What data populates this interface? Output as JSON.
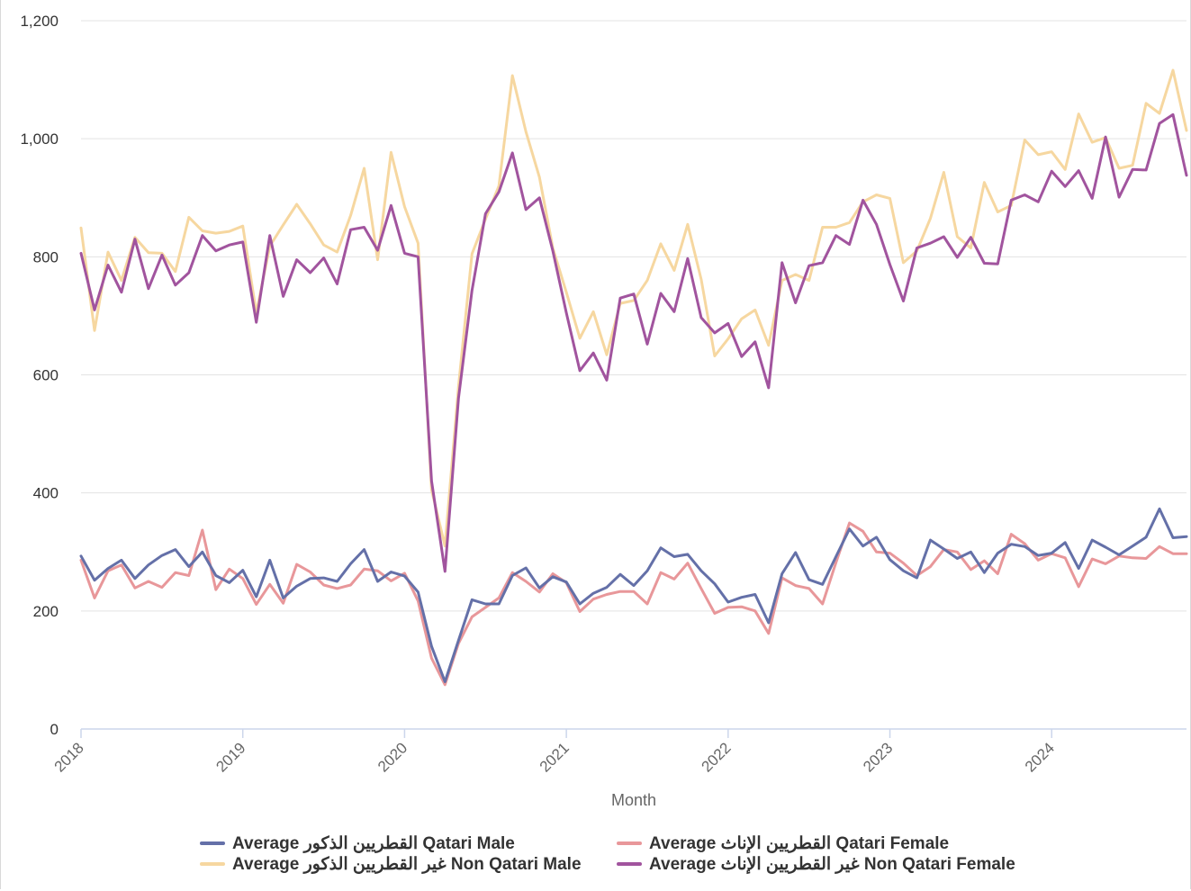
{
  "colors": {
    "qatari_male": "#6470a8",
    "qatari_female": "#e8979a",
    "non_qatari_male": "#f6d7a0",
    "non_qatari_female": "#a1549e",
    "grid": "#e3e3e3",
    "axis": "#ccd6eb",
    "text": "#333333",
    "axis_title": "#666666"
  },
  "chart_data": {
    "type": "line",
    "xlabel": "Month",
    "ylabel": "",
    "xlim": [
      "2018-01",
      "2024-11"
    ],
    "ylim": [
      0,
      1200
    ],
    "yticks": [
      0,
      200,
      400,
      600,
      800,
      1000,
      1200
    ],
    "ytick_labels": [
      "0",
      "200",
      "400",
      "600",
      "800",
      "1,000",
      "1,200"
    ],
    "xticks": [
      "2018",
      "2019",
      "2020",
      "2021",
      "2022",
      "2023",
      "2024"
    ],
    "grid": true,
    "legend_position": "bottom",
    "series": [
      {
        "name": "Average القطريين الذكور Qatari Male",
        "color_key": "qatari_male",
        "values": [
          293,
          252,
          272,
          286,
          255,
          278,
          294,
          304,
          275,
          300,
          260,
          248,
          269,
          224,
          286,
          222,
          242,
          255,
          256,
          250,
          280,
          304,
          250,
          266,
          259,
          232,
          140,
          80,
          150,
          219,
          212,
          212,
          260,
          273,
          239,
          258,
          249,
          212,
          230,
          240,
          262,
          243,
          268,
          307,
          292,
          296,
          268,
          246,
          215,
          223,
          228,
          180,
          263,
          299,
          253,
          245,
          292,
          339,
          310,
          325,
          287,
          268,
          256,
          320,
          305,
          289,
          300,
          265,
          298,
          313,
          309,
          294,
          298,
          316,
          272,
          320,
          308,
          295,
          310,
          325,
          373,
          324,
          326
        ],
        "layer": 4
      },
      {
        "name": "Average القطريين الإناث Qatari Female",
        "color_key": "qatari_female",
        "values": [
          286,
          222,
          268,
          278,
          239,
          250,
          240,
          265,
          260,
          337,
          236,
          271,
          255,
          211,
          245,
          213,
          279,
          266,
          244,
          238,
          244,
          271,
          268,
          251,
          264,
          217,
          120,
          75,
          145,
          190,
          206,
          222,
          265,
          250,
          232,
          263,
          248,
          199,
          220,
          228,
          233,
          233,
          212,
          265,
          254,
          281,
          238,
          196,
          206,
          207,
          200,
          162,
          256,
          243,
          238,
          212,
          282,
          349,
          335,
          300,
          298,
          281,
          260,
          275,
          304,
          300,
          270,
          285,
          263,
          330,
          314,
          286,
          297,
          290,
          241,
          288,
          280,
          293,
          290,
          289,
          309,
          297,
          297
        ],
        "layer": 3
      },
      {
        "name": "Average غير القطريين الذكور Non Qatari Male",
        "color_key": "non_qatari_male",
        "values": [
          849,
          675,
          808,
          760,
          833,
          807,
          806,
          775,
          867,
          844,
          840,
          843,
          852,
          705,
          818,
          854,
          889,
          856,
          820,
          808,
          870,
          950,
          795,
          977,
          885,
          823,
          405,
          310,
          580,
          805,
          864,
          920,
          1107,
          1012,
          935,
          815,
          740,
          662,
          707,
          634,
          721,
          726,
          760,
          822,
          777,
          855,
          762,
          632,
          661,
          695,
          710,
          650,
          760,
          770,
          760,
          850,
          850,
          858,
          893,
          905,
          899,
          790,
          810,
          865,
          943,
          834,
          815,
          926,
          876,
          887,
          998,
          973,
          978,
          948,
          1042,
          994,
          1002,
          950,
          955,
          1060,
          1043,
          1116,
          1014
        ],
        "layer": 1
      },
      {
        "name": "Average غير القطريين الإناث Non Qatari Female",
        "color_key": "non_qatari_female",
        "values": [
          806,
          710,
          786,
          740,
          830,
          746,
          803,
          752,
          773,
          836,
          810,
          820,
          825,
          689,
          836,
          733,
          795,
          773,
          798,
          754,
          846,
          850,
          811,
          887,
          806,
          800,
          420,
          267,
          560,
          743,
          873,
          910,
          976,
          880,
          900,
          810,
          705,
          607,
          637,
          591,
          730,
          737,
          652,
          738,
          707,
          797,
          697,
          671,
          687,
          631,
          656,
          578,
          790,
          722,
          785,
          790,
          836,
          821,
          896,
          855,
          787,
          725,
          815,
          823,
          834,
          799,
          833,
          789,
          788,
          896,
          905,
          893,
          945,
          919,
          946,
          899,
          1003,
          901,
          948,
          947,
          1026,
          1041,
          938
        ],
        "layer": 2
      }
    ]
  }
}
